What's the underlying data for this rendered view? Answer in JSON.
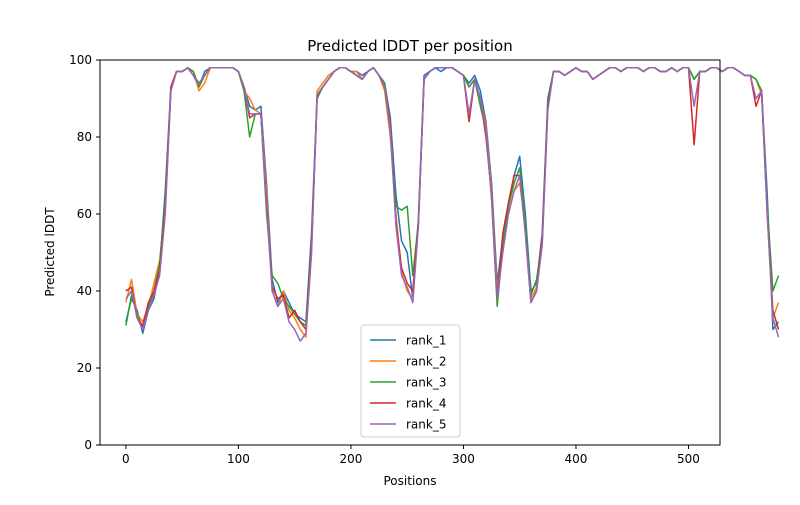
{
  "chart_data": {
    "type": "line",
    "title": "Predicted lDDT per position",
    "xlabel": "Positions",
    "ylabel": "Predicted lDDT",
    "xlim": [
      -23,
      528
    ],
    "ylim": [
      0,
      100
    ],
    "xticks": [
      0,
      100,
      200,
      300,
      400,
      500
    ],
    "yticks": [
      0,
      20,
      40,
      60,
      80,
      100
    ],
    "grid": false,
    "legend_position": "lower-center",
    "x_start": 0,
    "x_step": 5,
    "series": [
      {
        "name": "rank_1",
        "color": "#1f77b4",
        "values": [
          32,
          38,
          35,
          29,
          35,
          38,
          46,
          66,
          93,
          97,
          97,
          98,
          96,
          93,
          97,
          98,
          98,
          98,
          98,
          98,
          97,
          93,
          88,
          87,
          88,
          68,
          43,
          37,
          40,
          37,
          34,
          33,
          32,
          55,
          91,
          93,
          95,
          97,
          98,
          98,
          97,
          97,
          96,
          97,
          98,
          96,
          94,
          85,
          65,
          53,
          50,
          38,
          59,
          96,
          97,
          98,
          97,
          98,
          98,
          97,
          96,
          94,
          96,
          92,
          84,
          68,
          42,
          54,
          62,
          70,
          75,
          60,
          40,
          42,
          55,
          90,
          97,
          97,
          96,
          97,
          98,
          97,
          97,
          95,
          96,
          97,
          98,
          98,
          97,
          98,
          98,
          98,
          97,
          98,
          98,
          97,
          97,
          98,
          97,
          98,
          98,
          95,
          97,
          97,
          98,
          98,
          97,
          98,
          98,
          97,
          96,
          96,
          95,
          92,
          65,
          30,
          32
        ]
      },
      {
        "name": "rank_2",
        "color": "#ff7f0e",
        "values": [
          37,
          43,
          34,
          32,
          36,
          42,
          48,
          61,
          93,
          97,
          97,
          98,
          97,
          92,
          94,
          98,
          98,
          98,
          98,
          98,
          97,
          92,
          90,
          87,
          86,
          66,
          40,
          36,
          40,
          35,
          33,
          30,
          28,
          50,
          92,
          94,
          96,
          97,
          98,
          98,
          97,
          97,
          95,
          97,
          98,
          96,
          92,
          80,
          60,
          45,
          40,
          38,
          58,
          95,
          97,
          98,
          98,
          98,
          98,
          97,
          96,
          93,
          95,
          90,
          83,
          66,
          40,
          53,
          60,
          66,
          68,
          57,
          38,
          41,
          52,
          88,
          97,
          97,
          96,
          97,
          98,
          97,
          97,
          95,
          96,
          97,
          98,
          98,
          97,
          98,
          98,
          98,
          97,
          98,
          98,
          97,
          97,
          98,
          97,
          98,
          98,
          95,
          97,
          97,
          98,
          98,
          97,
          98,
          98,
          97,
          96,
          96,
          95,
          91,
          60,
          33,
          37
        ]
      },
      {
        "name": "rank_3",
        "color": "#2ca02c",
        "values": [
          31,
          39,
          34,
          30,
          36,
          40,
          47,
          64,
          92,
          97,
          97,
          98,
          97,
          93,
          96,
          98,
          98,
          98,
          98,
          98,
          97,
          92,
          80,
          86,
          86,
          60,
          44,
          42,
          38,
          36,
          34,
          32,
          31,
          52,
          90,
          93,
          95,
          97,
          98,
          98,
          97,
          96,
          95,
          97,
          98,
          96,
          94,
          82,
          62,
          61,
          62,
          44,
          58,
          95,
          97,
          98,
          98,
          98,
          98,
          97,
          96,
          93,
          95,
          88,
          82,
          64,
          36,
          52,
          62,
          68,
          72,
          58,
          39,
          43,
          53,
          89,
          97,
          97,
          96,
          97,
          98,
          97,
          97,
          95,
          96,
          97,
          98,
          98,
          97,
          98,
          98,
          98,
          97,
          98,
          98,
          97,
          97,
          98,
          97,
          98,
          98,
          95,
          97,
          97,
          98,
          98,
          97,
          98,
          98,
          97,
          96,
          96,
          95,
          92,
          62,
          40,
          44
        ]
      },
      {
        "name": "rank_4",
        "color": "#d62728",
        "values": [
          40,
          41,
          33,
          31,
          37,
          40,
          45,
          62,
          93,
          97,
          97,
          98,
          96,
          94,
          96,
          98,
          98,
          98,
          98,
          98,
          97,
          93,
          85,
          86,
          86,
          63,
          41,
          38,
          39,
          33,
          35,
          32,
          30,
          52,
          91,
          93,
          95,
          97,
          98,
          98,
          97,
          96,
          95,
          97,
          98,
          96,
          93,
          83,
          58,
          46,
          42,
          40,
          58,
          95,
          97,
          98,
          98,
          98,
          98,
          97,
          96,
          84,
          95,
          90,
          80,
          65,
          38,
          55,
          63,
          70,
          70,
          55,
          37,
          40,
          54,
          88,
          97,
          97,
          96,
          97,
          98,
          97,
          97,
          95,
          96,
          97,
          98,
          98,
          97,
          98,
          98,
          98,
          97,
          98,
          98,
          97,
          97,
          98,
          97,
          98,
          98,
          78,
          97,
          97,
          98,
          98,
          97,
          98,
          98,
          97,
          96,
          96,
          88,
          92,
          60,
          35,
          30
        ]
      },
      {
        "name": "rank_5",
        "color": "#9467bd",
        "values": [
          38,
          40,
          33,
          30,
          35,
          39,
          44,
          60,
          92,
          97,
          97,
          98,
          96,
          94,
          96,
          98,
          98,
          98,
          98,
          98,
          97,
          93,
          86,
          86,
          86,
          62,
          40,
          36,
          38,
          32,
          30,
          27,
          29,
          50,
          91,
          93,
          95,
          97,
          98,
          98,
          97,
          96,
          95,
          97,
          98,
          96,
          93,
          82,
          57,
          44,
          41,
          37,
          57,
          95,
          97,
          98,
          98,
          98,
          98,
          97,
          96,
          86,
          95,
          90,
          82,
          64,
          38,
          50,
          60,
          66,
          70,
          55,
          37,
          40,
          52,
          87,
          97,
          97,
          96,
          97,
          98,
          97,
          97,
          95,
          96,
          97,
          98,
          98,
          97,
          98,
          98,
          98,
          97,
          98,
          98,
          97,
          97,
          98,
          97,
          98,
          98,
          88,
          97,
          97,
          98,
          98,
          97,
          98,
          98,
          97,
          96,
          96,
          90,
          92,
          60,
          33,
          28
        ]
      }
    ]
  }
}
